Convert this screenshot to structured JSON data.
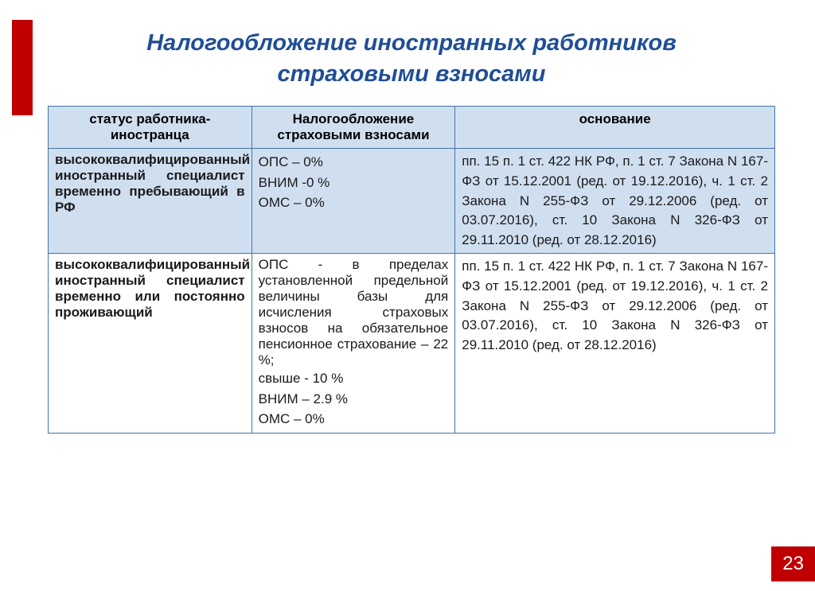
{
  "slide": {
    "title_line1": "Налогообложение иностранных работников",
    "title_line2": "страховыми взносами",
    "page_number": "23"
  },
  "colors": {
    "accent_red": "#c00000",
    "title_blue": "#1f4e96",
    "header_bg": "#d0dff0",
    "border": "#4472a8"
  },
  "table": {
    "headers": {
      "status": "статус работника-иностранца",
      "taxation": "Налогообложение страховыми взносами",
      "basis": "основание"
    },
    "rows": [
      {
        "highlight": true,
        "status": "высококвалифицированный иностранный специалист временно пребывающий в РФ",
        "taxation_lines": [
          "ОПС – 0%",
          "ВНИМ -0 %",
          "ОМС – 0%"
        ],
        "basis": "пп. 15 п. 1 ст. 422 НК РФ, п. 1 ст. 7 Закона N 167-ФЗ от 15.12.2001 (ред. от 19.12.2016), ч. 1 ст. 2 Закона N 255-ФЗ  от 29.12.2006 (ред. от 03.07.2016), ст. 10 Закона N 326-ФЗ  от 29.11.2010 (ред. от 28.12.2016)"
      },
      {
        "highlight": false,
        "status": "высококвалифицированный иностранный специалист временно или постоянно проживающий",
        "taxation_justify": "ОПС - в пределах установленной предельной величины базы для исчисления страховых взносов на обязательное пенсионное страхование – 22 %;",
        "taxation_lines": [
          " свыше - 10 %",
          "",
          "ВНИМ – 2.9 %",
          "ОМС – 0%"
        ],
        "basis": "пп. 15 п. 1 ст. 422 НК РФ, п. 1 ст. 7 Закона N 167-ФЗ от 15.12.2001 (ред. от 19.12.2016), ч. 1 ст. 2 Закона N 255-ФЗ  от 29.12.2006 (ред. от 03.07.2016), ст. 10 Закона N 326-ФЗ  от 29.11.2010 (ред. от 28.12.2016)"
      }
    ]
  }
}
